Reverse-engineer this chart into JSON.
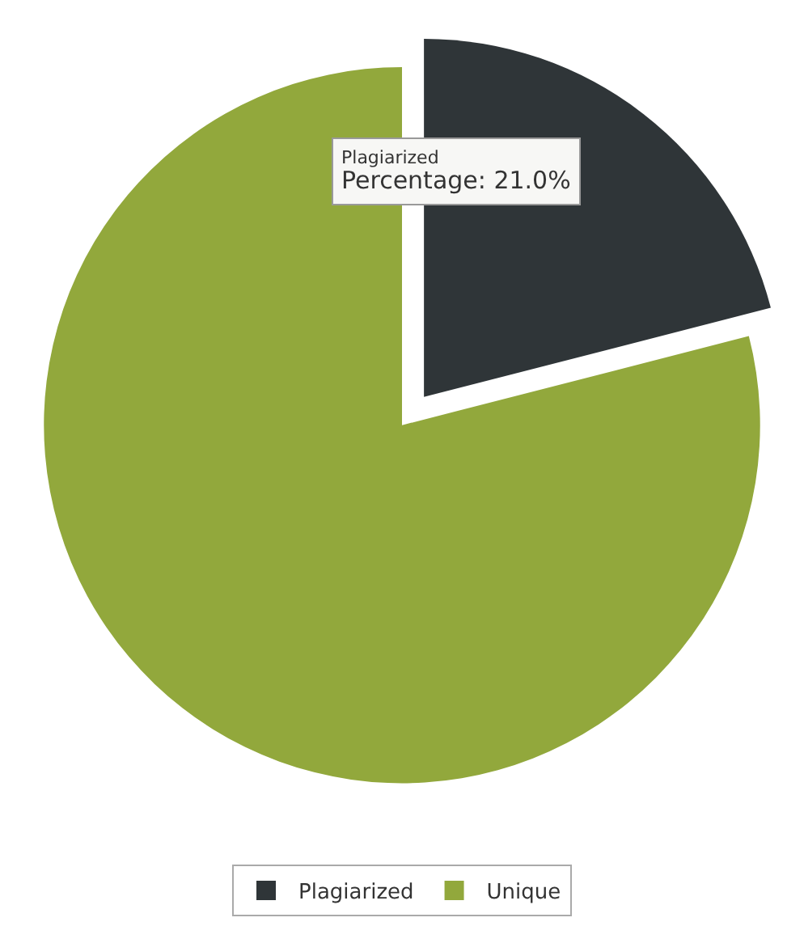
{
  "chart_data": {
    "type": "pie",
    "categories": [
      "Plagiarized",
      "Unique"
    ],
    "values": [
      21,
      79
    ],
    "colors": [
      "#2f3538",
      "#92a83c"
    ],
    "legend": "bottom",
    "annotations": [
      "Plagiarized\nPercentage: 21.0%"
    ]
  }
}
